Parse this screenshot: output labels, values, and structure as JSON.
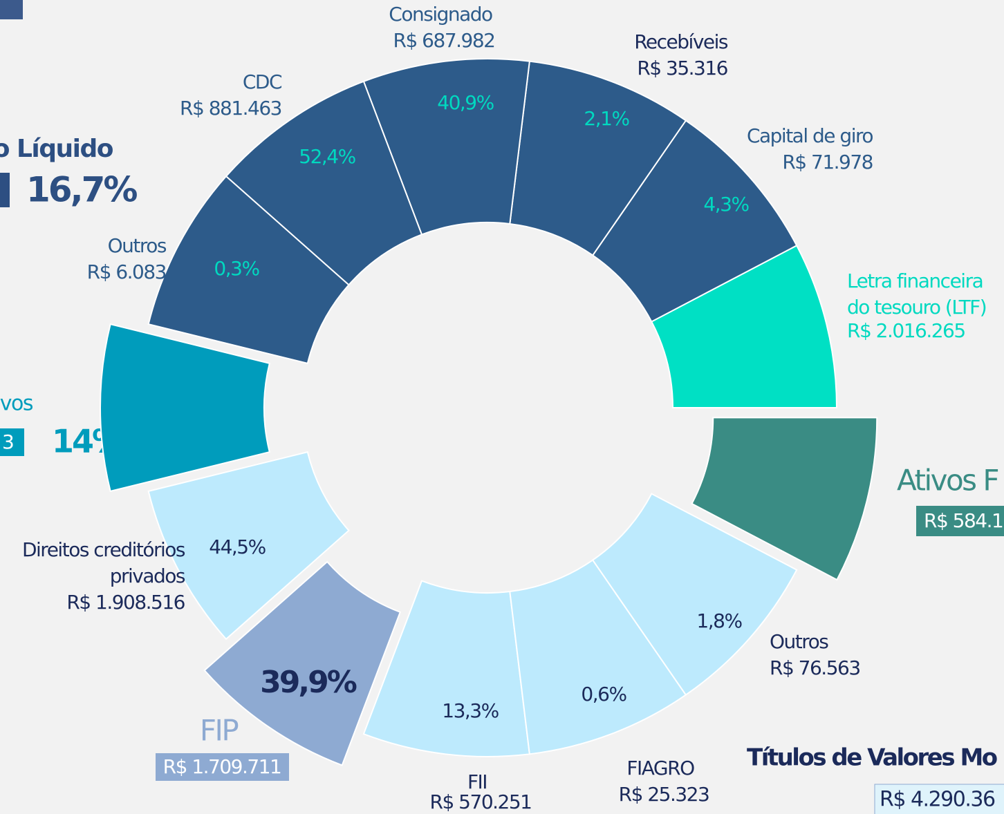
{
  "segments": [
    {
      "label": [
        "Letra financeira",
        "do tesouro (LTF)"
      ],
      "amount": "R$ 2.016.265",
      "color": "#00e0c4"
    },
    {
      "label": [
        "Capital de giro"
      ],
      "amount": "R$ 71.978",
      "percent": "4,3%",
      "color": "#2d5b8a"
    },
    {
      "label": [
        "Recebíveis"
      ],
      "amount": "R$ 35.316",
      "percent": "2,1%",
      "color": "#2d5b8a"
    },
    {
      "label": [
        "Consignado"
      ],
      "amount": "R$ 687.982",
      "percent": "40,9%",
      "color": "#2d5b8a"
    },
    {
      "label": [
        "CDC"
      ],
      "amount": "R$ 881.463",
      "percent": "52,4%",
      "color": "#2d5b8a"
    },
    {
      "label": [
        "Outros"
      ],
      "amount": "R$ 6.083",
      "percent": "0,3%",
      "color": "#2d5b8a"
    },
    {
      "color": "#009cbc"
    },
    {
      "label": [
        "Direitos creditórios",
        "privados"
      ],
      "amount": "R$ 1.908.516",
      "percent": "44,5%",
      "color": "#bdeafd"
    },
    {
      "label": [
        "FIP"
      ],
      "amount": "R$ 1.709.711",
      "percent": "39,9%",
      "color": "#8eaad2"
    },
    {
      "label": [
        "FII"
      ],
      "amount": "R$ 570.251",
      "percent": "13,3%",
      "color": "#bdeafd"
    },
    {
      "label": [
        "FIAGRO"
      ],
      "amount": "R$ 25.323",
      "percent": "0,6%",
      "color": "#bdeafd"
    },
    {
      "label": [
        "Outros"
      ],
      "amount": "R$ 76.563",
      "percent": "1,8%",
      "color": "#bdeafd"
    },
    {
      "label": [
        "Ativos F"
      ],
      "amount": "R$ 584.1",
      "color": "#3a8c84"
    }
  ],
  "fragments": {
    "net_title": "to Líquido",
    "net_percent": "16,7%",
    "left_title": "vos",
    "left_amount": "3",
    "left_percent": "14%",
    "bottom_title": "Títulos de Valores Mo",
    "bottom_amount": "R$ 4.290.36"
  }
}
